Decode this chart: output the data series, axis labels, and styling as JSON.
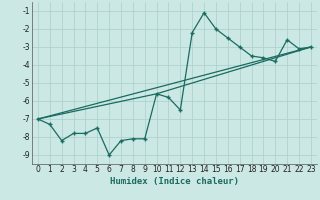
{
  "xlabel": "Humidex (Indice chaleur)",
  "background_color": "#cce8e4",
  "line_color": "#1a6b60",
  "grid_color": "#aacfcb",
  "xlim": [
    -0.5,
    23.5
  ],
  "ylim": [
    -9.5,
    -0.5
  ],
  "xticks": [
    0,
    1,
    2,
    3,
    4,
    5,
    6,
    7,
    8,
    9,
    10,
    11,
    12,
    13,
    14,
    15,
    16,
    17,
    18,
    19,
    20,
    21,
    22,
    23
  ],
  "yticks": [
    -9,
    -8,
    -7,
    -6,
    -5,
    -4,
    -3,
    -2,
    -1
  ],
  "series1_x": [
    0,
    1,
    2,
    3,
    4,
    5,
    6,
    7,
    8,
    9,
    10,
    11,
    12,
    13,
    14,
    15,
    16,
    17,
    18,
    19,
    20,
    21,
    22,
    23
  ],
  "series1_y": [
    -7.0,
    -7.3,
    -8.2,
    -7.8,
    -7.8,
    -7.5,
    -9.0,
    -8.2,
    -8.1,
    -8.1,
    -5.6,
    -5.8,
    -6.5,
    -2.2,
    -1.1,
    -2.0,
    -2.5,
    -3.0,
    -3.5,
    -3.6,
    -3.8,
    -2.6,
    -3.1,
    -3.0
  ],
  "series2_x": [
    0,
    23
  ],
  "series2_y": [
    -7.0,
    -3.0
  ],
  "series3_x": [
    0,
    10,
    23
  ],
  "series3_y": [
    -7.0,
    -5.6,
    -3.0
  ]
}
